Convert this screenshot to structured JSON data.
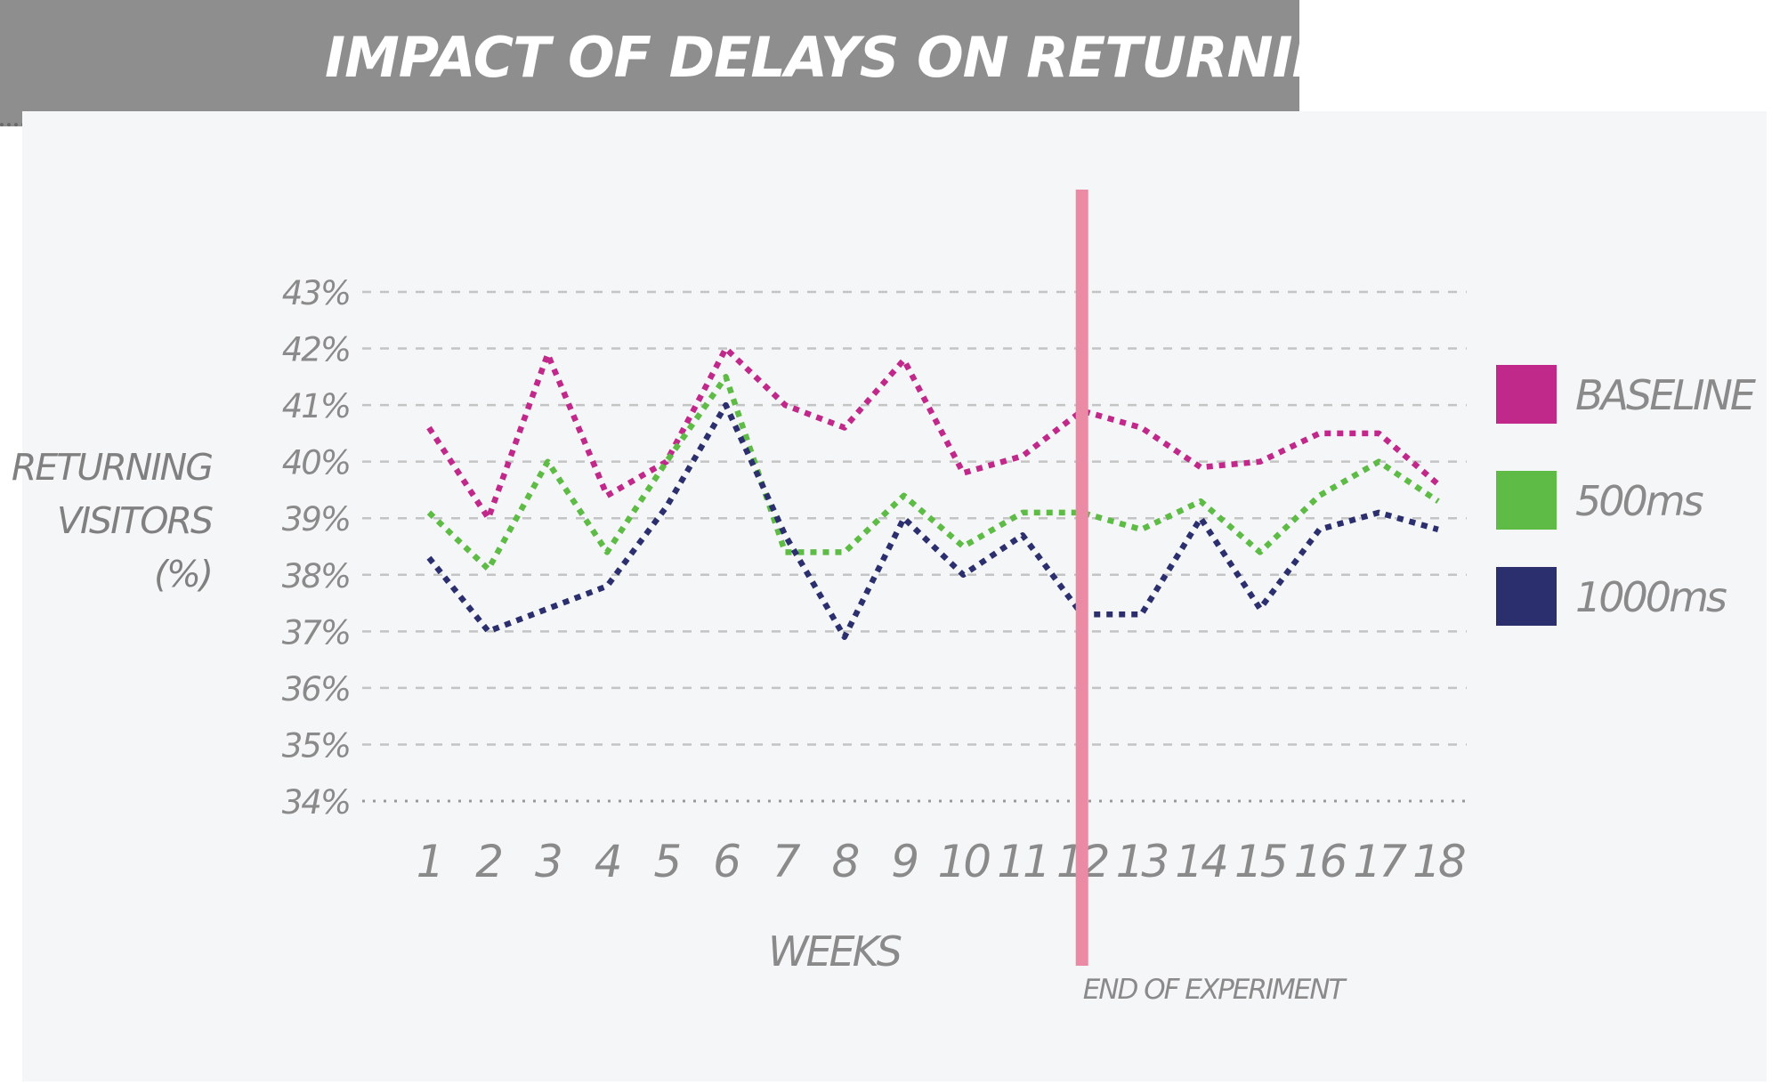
{
  "chart_data": {
    "type": "line",
    "title": "IMPACT OF DELAYS ON RETURNING VISITORS",
    "xlabel": "WEEKS",
    "ylabel_lines": [
      "RETURNING",
      "VISITORS",
      "(%)"
    ],
    "x": [
      1,
      2,
      3,
      4,
      5,
      6,
      7,
      8,
      9,
      10,
      11,
      12,
      13,
      14,
      15,
      16,
      17,
      18
    ],
    "y_ticks": [
      "34%",
      "35%",
      "36%",
      "37%",
      "38%",
      "39%",
      "40%",
      "41%",
      "42%",
      "43%"
    ],
    "ylim": [
      34,
      43
    ],
    "grid": true,
    "legend_position": "right",
    "series": [
      {
        "name": "BASELINE",
        "color": "#c0288a",
        "values": [
          40.6,
          39.0,
          41.9,
          39.4,
          40.0,
          42.0,
          41.0,
          40.6,
          41.8,
          39.8,
          40.1,
          40.9,
          40.6,
          39.9,
          40.0,
          40.5,
          40.5,
          39.6
        ]
      },
      {
        "name": "500ms",
        "color": "#5dbb46",
        "values": [
          39.1,
          38.1,
          40.0,
          38.4,
          40.0,
          41.5,
          38.4,
          38.4,
          39.4,
          38.5,
          39.1,
          39.1,
          38.8,
          39.3,
          38.4,
          39.4,
          40.0,
          39.3
        ]
      },
      {
        "name": "1000ms",
        "color": "#2c2f6e",
        "values": [
          38.3,
          37.0,
          37.4,
          37.8,
          39.2,
          41.0,
          38.7,
          36.9,
          39.0,
          38.0,
          38.7,
          37.3,
          37.3,
          39.0,
          37.4,
          38.8,
          39.1,
          38.8
        ]
      }
    ],
    "annotation": {
      "x": 12,
      "text": "END OF EXPERIMENT",
      "color": "#ea8aa4"
    }
  }
}
